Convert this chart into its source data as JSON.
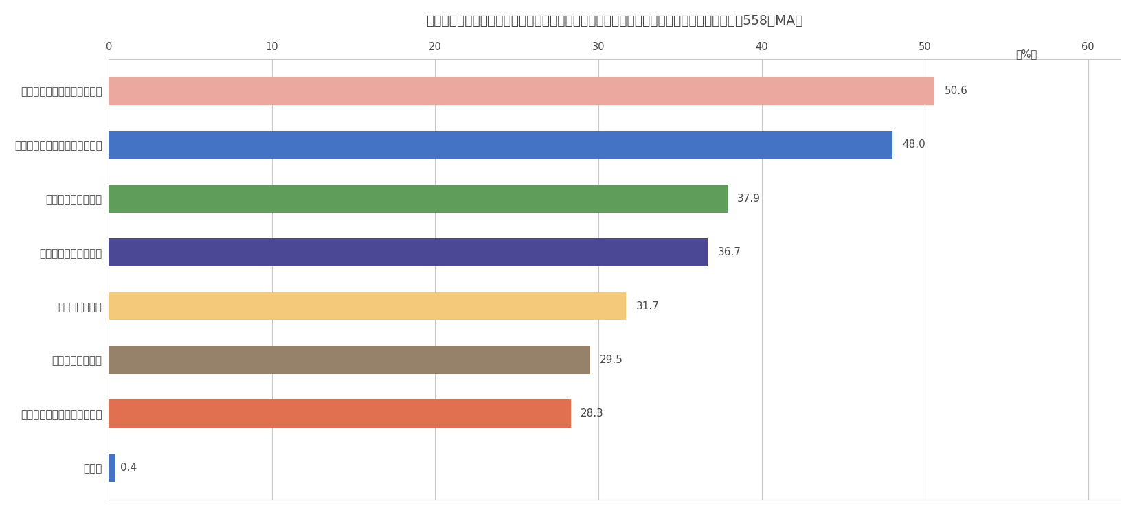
{
  "title": "リスキリングに取り組むことにより、どのようなメリットがあると思いますか　（ｎ＝２，558、MA）",
  "categories": [
    "業務の効率化・生産性の向上",
    "従業員のモチベーションの向上",
    "デジタル化への対応",
    "対応可能な業務の拡大",
    "専門人材の育成",
    "新たな事業の創出",
    "従業員の賃上げに繋げるため",
    "その他"
  ],
  "values": [
    50.6,
    48.0,
    37.9,
    36.7,
    31.7,
    29.5,
    28.3,
    0.4
  ],
  "bar_colors": [
    "#EAA89E",
    "#4472C4",
    "#5E9E5A",
    "#4B4896",
    "#F5C97A",
    "#96826A",
    "#E07050",
    "#4472C4"
  ],
  "xlim": [
    0,
    62
  ],
  "xticks": [
    0,
    10,
    20,
    30,
    40,
    50,
    60
  ],
  "xlabel_unit": "60（%）",
  "background_color": "#FFFFFF",
  "grid_color": "#C8C8C8",
  "title_fontsize": 13.5,
  "label_fontsize": 11,
  "value_fontsize": 11,
  "tick_fontsize": 10.5,
  "bar_height": 0.52,
  "text_color": "#4A4A4A"
}
